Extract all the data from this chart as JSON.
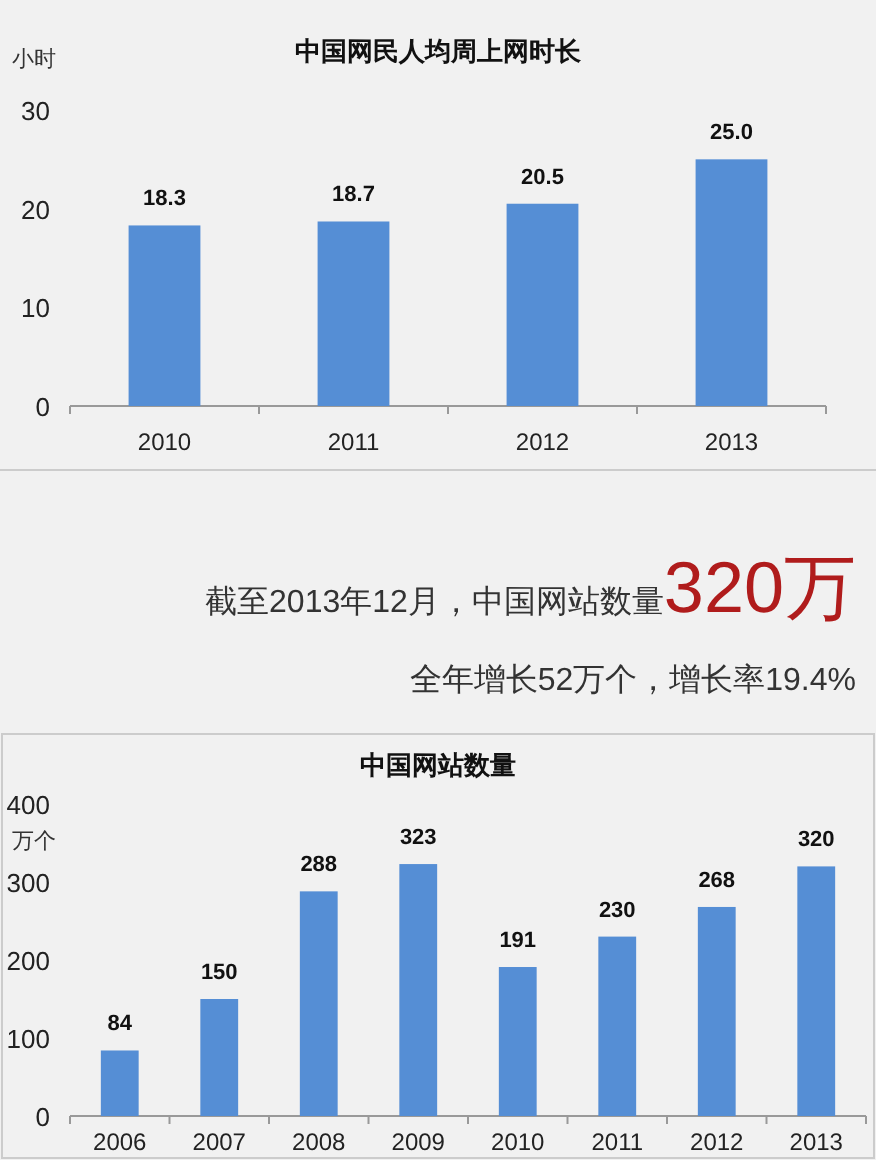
{
  "chart_data": [
    {
      "type": "bar",
      "title": "中国网民人均周上网时长",
      "ylabel": "小时",
      "categories": [
        "2010",
        "2011",
        "2012",
        "2013"
      ],
      "values": [
        18.3,
        18.7,
        20.5,
        25.0
      ],
      "value_labels": [
        "18.3",
        "18.7",
        "20.5",
        "25.0"
      ],
      "color": "#558ed5",
      "ylim": [
        0,
        30
      ],
      "yticks": [
        0,
        10,
        20,
        30
      ],
      "grid": false
    },
    {
      "type": "other",
      "annotations": [
        "截至2013年12月，中国网站数量",
        "320万",
        "全年增长52万个，增长率19.4%"
      ]
    },
    {
      "type": "bar",
      "title": "中国网站数量",
      "ylabel": "万个",
      "categories": [
        "2006",
        "2007",
        "2008",
        "2009",
        "2010",
        "2011",
        "2012",
        "2013"
      ],
      "values": [
        84,
        150,
        288,
        323,
        191,
        230,
        268,
        320
      ],
      "data_labels": true,
      "color": "#558ed5",
      "ylim": [
        0,
        400
      ],
      "yticks": [
        0,
        100,
        200,
        300,
        400
      ],
      "grid": false
    }
  ]
}
